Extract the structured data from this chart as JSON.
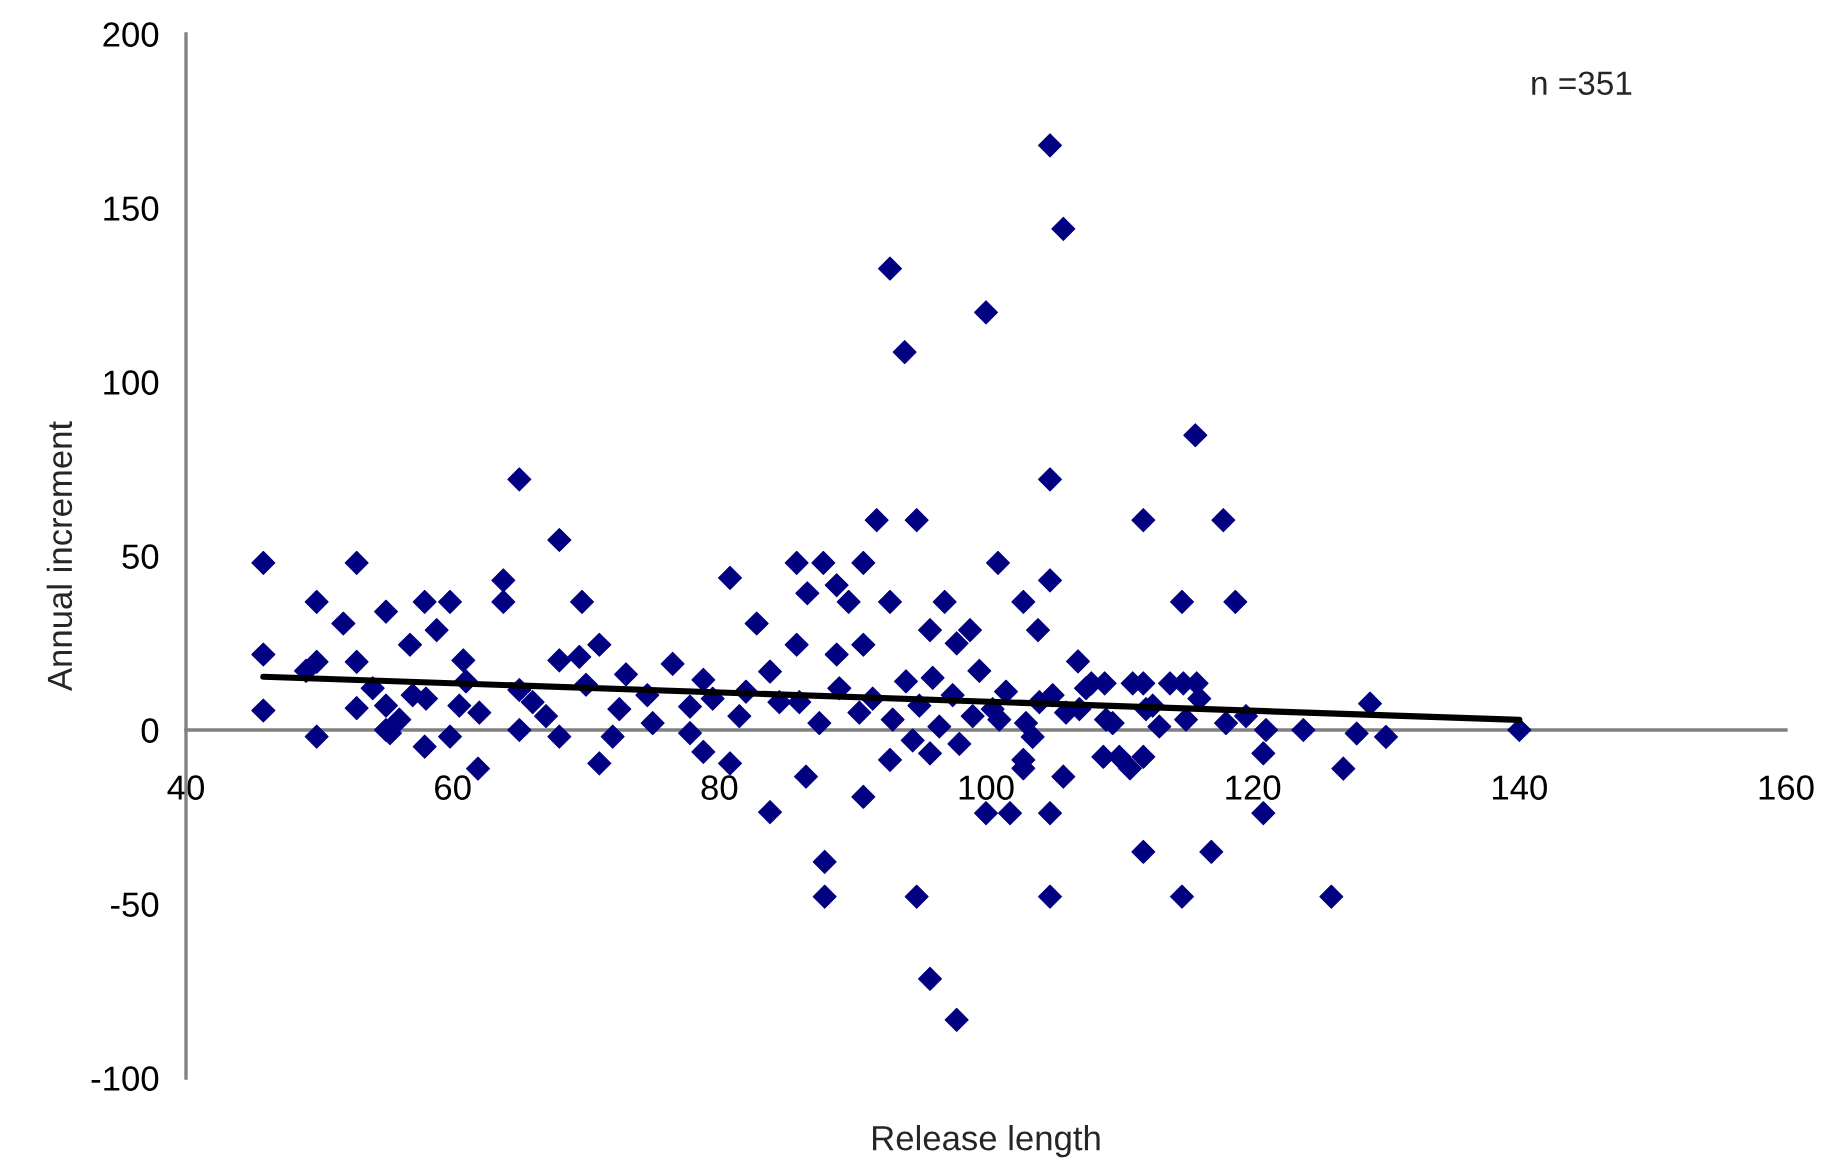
{
  "chart_data": {
    "type": "scatter",
    "xlabel": "Release length",
    "ylabel": "Annual increment",
    "annotations": [
      "n =351"
    ],
    "xlim": [
      40,
      160
    ],
    "ylim": [
      -100,
      200
    ],
    "xticks": [
      40,
      60,
      80,
      100,
      120,
      140,
      160
    ],
    "yticks": [
      -100,
      -50,
      0,
      50,
      100,
      150,
      200
    ],
    "grid": false,
    "series": [
      {
        "marker": "diamond",
        "color": "#000080",
        "x": [
          45.8,
          45.8,
          45.8,
          49.8,
          49.8,
          49,
          49.8,
          51.8,
          52.8,
          52.8,
          52.8,
          55,
          56.8,
          57.9,
          59.8,
          58.8,
          57.9,
          59.8,
          61.9,
          60.8,
          55,
          55.3,
          63.8,
          63.8,
          65,
          68,
          69.7,
          68,
          71,
          71,
          72,
          65,
          65,
          68,
          69.5,
          76.5,
          77.8,
          77.8,
          78.8,
          78.8,
          80.8,
          80.8,
          82.8,
          83.8,
          83.8,
          73,
          74.6,
          61,
          57,
          55,
          60.5,
          54,
          56,
          58,
          62,
          66,
          67,
          70,
          72.5,
          75,
          79.5,
          81.5,
          82,
          84.5,
          91.8,
          94.8,
          85.8,
          87.8,
          90.8,
          86.6,
          88.8,
          89.7,
          92.8,
          96.9,
          100.9,
          102.8,
          104.8,
          103.9,
          95.8,
          98.8,
          97.8,
          85.8,
          88.8,
          90.8,
          111.8,
          117.8,
          114.7,
          118.7,
          106.9,
          113.8,
          114.8,
          115.8,
          111.8,
          111,
          107.9,
          108.9,
          86.5,
          90.8,
          92.8,
          95.8,
          102.8,
          102.8,
          105.8,
          108.8,
          110,
          111.8,
          110.8,
          120.8,
          126.8,
          128.8,
          123.8,
          127.8,
          130,
          100,
          101.8,
          104.8,
          120.8,
          104.8,
          105.8,
          92.8,
          100,
          93.9,
          115.7,
          104.8,
          87.9,
          87.9,
          94.8,
          104.8,
          111.8,
          116.9,
          114.7,
          125.9,
          95.8,
          97.8,
          140,
          86,
          87.5,
          89,
          90.5,
          91.5,
          93,
          94,
          95,
          96.5,
          97.5,
          99,
          100.5,
          101.5,
          103,
          104,
          106,
          107.5,
          109,
          112,
          113,
          116,
          118,
          119.5,
          121,
          94.5,
          96,
          98,
          99.5,
          101,
          103.5,
          105,
          107,
          109.5,
          112.5,
          115
        ],
        "values": [
          48,
          21.7,
          5.6,
          36.8,
          -1.9,
          17,
          19.6,
          30.6,
          48,
          19.6,
          6.3,
          34,
          24.5,
          36.8,
          36.8,
          28.7,
          -4.8,
          -1.9,
          -11.1,
          20,
          0,
          -0.9,
          43,
          36.8,
          72,
          54.6,
          36.8,
          20,
          24.5,
          -9.6,
          -1.9,
          11.5,
          0,
          -1.9,
          21,
          19,
          6.7,
          -0.9,
          14.4,
          -6.3,
          43.7,
          -9.6,
          30.6,
          -23.6,
          16.8,
          16,
          10,
          14,
          10,
          7,
          7,
          12,
          3,
          9,
          5,
          8,
          4,
          13,
          6,
          2,
          9,
          4,
          11,
          8,
          60.3,
          60.3,
          48,
          48,
          48,
          39.3,
          41.6,
          36.8,
          36.8,
          36.8,
          48,
          36.8,
          43,
          28.7,
          28.7,
          28.7,
          24.9,
          24.5,
          21.7,
          24.5,
          60.3,
          60.3,
          36.8,
          36.8,
          19.7,
          13.4,
          13.4,
          13.4,
          13.4,
          13.4,
          13.4,
          13.4,
          -13.4,
          -19.2,
          -8.6,
          -6.7,
          -8.6,
          -11,
          -13.4,
          -7.7,
          -7.7,
          -7.7,
          -11,
          -6.7,
          -11.1,
          7.6,
          0,
          -1,
          -2,
          -23.9,
          -23.9,
          -23.9,
          -23.9,
          168,
          144,
          132.6,
          120,
          108.6,
          84.7,
          72,
          -37.9,
          -47.9,
          -47.9,
          -47.9,
          -35,
          -35,
          -47.9,
          -47.9,
          -71.5,
          -83.3,
          0,
          8,
          2,
          12,
          5,
          9,
          3,
          14,
          7,
          1,
          10,
          4,
          6,
          11,
          2,
          8,
          5,
          12,
          3,
          6,
          1,
          9,
          2,
          4,
          0,
          -3,
          15,
          -4,
          17,
          3,
          -2,
          10,
          6,
          2,
          7,
          3
        ]
      },
      {
        "type": "line",
        "color": "#000000",
        "x": [
          45.8,
          140
        ],
        "values": [
          15.3,
          2.9
        ]
      }
    ]
  }
}
